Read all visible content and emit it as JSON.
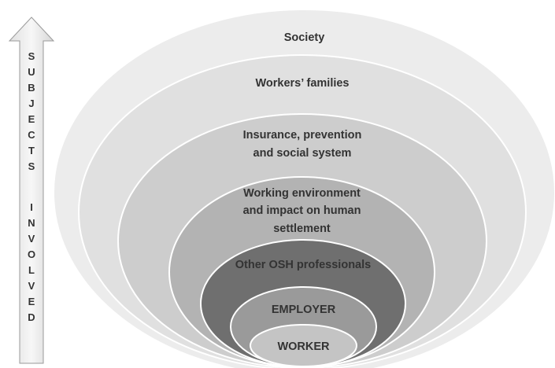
{
  "arrow_label": {
    "words": [
      "SUBJECTS",
      "INVOLVED"
    ]
  },
  "levels": [
    {
      "lines": [
        "Society"
      ]
    },
    {
      "lines": [
        "Workers’ families"
      ]
    },
    {
      "lines": [
        "Insurance, prevention",
        "and social system"
      ]
    },
    {
      "lines": [
        "Working environment",
        "and impact on human",
        "settlement"
      ]
    },
    {
      "lines": [
        "Other OSH professionals"
      ]
    },
    {
      "lines": [
        "EMPLOYER"
      ]
    },
    {
      "lines": [
        "WORKER"
      ]
    }
  ]
}
